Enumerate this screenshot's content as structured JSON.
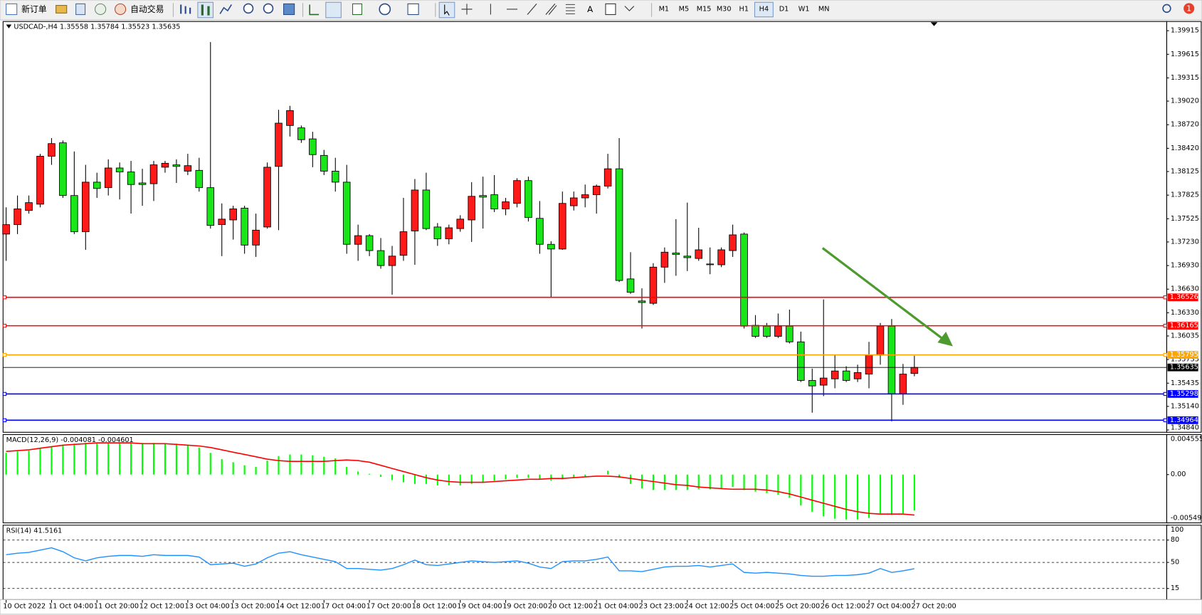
{
  "toolbar": {
    "new_order": "新订单",
    "auto_trading": "自动交易",
    "timeframes": [
      "M1",
      "M5",
      "M15",
      "M30",
      "H1",
      "H4",
      "D1",
      "W1",
      "MN"
    ],
    "active_timeframe": "H4",
    "notifications": 1
  },
  "chart_data": [
    {
      "type": "candlestick",
      "symbol": "USDCAD-,H4",
      "categories": [
        "10 Oct 2022",
        null,
        null,
        null,
        "11 Oct 04:00",
        null,
        null,
        null,
        "11 Oct 20:00",
        null,
        null,
        null,
        "12 Oct 12:00",
        null,
        null,
        null,
        "13 Oct 04:00",
        null,
        null,
        null,
        "13 Oct 20:00",
        null,
        null,
        null,
        "14 Oct 12:00",
        null,
        null,
        null,
        "17 Oct 04:00",
        null,
        null,
        null,
        "17 Oct 20:00",
        null,
        null,
        null,
        "18 Oct 12:00",
        null,
        null,
        null,
        "19 Oct 04:00",
        null,
        null,
        null,
        "19 Oct 20:00",
        null,
        null,
        null,
        "20 Oct 12:00",
        null,
        null,
        null,
        "21 Oct 04:00",
        null,
        null,
        null,
        "23 Oct 23:00",
        null,
        null,
        null,
        "24 Oct 12:00",
        null,
        null,
        null,
        "25 Oct 04:00",
        null,
        null,
        null,
        "25 Oct 20:00",
        null,
        null,
        null,
        "26 Oct 12:00",
        null,
        null,
        null,
        "27 Oct 04:00",
        null,
        null,
        null,
        "27 Oct 20:00"
      ],
      "open": [
        1.3733,
        1.3745,
        1.3763,
        1.3771,
        1.3832,
        1.3849,
        1.3782,
        1.3736,
        1.3799,
        1.3792,
        1.3817,
        1.3812,
        1.3798,
        1.3797,
        1.3818,
        1.3821,
        1.3813,
        1.3814,
        1.3792,
        1.3745,
        1.3751,
        1.3766,
        1.3719,
        1.3742,
        1.3819,
        1.3871,
        1.3868,
        1.3854,
        1.3833,
        1.3813,
        1.3799,
        1.372,
        1.3731,
        1.3712,
        1.3693,
        1.3706,
        1.3737,
        1.3789,
        1.3742,
        1.3727,
        1.374,
        1.3751,
        1.3782,
        1.3783,
        1.3765,
        1.3772,
        1.3801,
        1.3753,
        1.372,
        1.3714,
        1.3769,
        1.3779,
        1.3783,
        1.3794,
        1.3816,
        1.3676,
        1.3648,
        1.3645,
        1.3691,
        1.3709,
        1.3705,
        1.3702,
        1.3695,
        1.3694,
        1.3712,
        1.3733,
        1.3617,
        1.3616,
        1.3603,
        1.3616,
        1.3596,
        1.3547,
        1.3541,
        1.3549,
        1.3559,
        1.3549,
        1.3555,
        1.3579,
        1.3616,
        1.353,
        1.35558
      ],
      "high": [
        1.3767,
        1.3782,
        1.3782,
        1.3835,
        1.3855,
        1.3852,
        1.3838,
        1.3821,
        1.3811,
        1.3828,
        1.3824,
        1.3826,
        1.3816,
        1.3826,
        1.3826,
        1.3828,
        1.3835,
        1.383,
        1.3977,
        1.3772,
        1.3769,
        1.3769,
        1.3759,
        1.3824,
        1.3891,
        1.3896,
        1.3871,
        1.3863,
        1.384,
        1.383,
        1.3821,
        1.3745,
        1.3733,
        1.3728,
        1.3718,
        1.3779,
        1.3803,
        1.3811,
        1.3747,
        1.3745,
        1.3757,
        1.3799,
        1.3806,
        1.3808,
        1.3779,
        1.3804,
        1.3806,
        1.3775,
        1.3724,
        1.3787,
        1.3787,
        1.3796,
        1.3796,
        1.3835,
        1.3855,
        1.371,
        1.3664,
        1.3696,
        1.3716,
        1.3752,
        1.3773,
        1.3741,
        1.3716,
        1.3716,
        1.3745,
        1.3735,
        1.363,
        1.362,
        1.3632,
        1.3637,
        1.3609,
        1.3562,
        1.365,
        1.3579,
        1.3565,
        1.3567,
        1.3596,
        1.362,
        1.3625,
        1.3568,
        1.35784
      ],
      "low": [
        1.3699,
        1.3733,
        1.3759,
        1.3767,
        1.3821,
        1.3779,
        1.3733,
        1.3713,
        1.3779,
        1.3782,
        1.3777,
        1.3759,
        1.3769,
        1.3775,
        1.3811,
        1.3798,
        1.3808,
        1.3787,
        1.374,
        1.3705,
        1.3726,
        1.3708,
        1.3704,
        1.374,
        1.3738,
        1.3857,
        1.3849,
        1.3818,
        1.3808,
        1.3787,
        1.3708,
        1.3699,
        1.3705,
        1.3689,
        1.3656,
        1.3699,
        1.3694,
        1.3738,
        1.3718,
        1.372,
        1.3736,
        1.3723,
        1.374,
        1.3761,
        1.3757,
        1.3767,
        1.3749,
        1.3708,
        1.3652,
        1.3713,
        1.3763,
        1.3767,
        1.3759,
        1.3791,
        1.3672,
        1.3657,
        1.3613,
        1.3643,
        1.3671,
        1.368,
        1.3686,
        1.3699,
        1.3682,
        1.3691,
        1.3704,
        1.3613,
        1.3601,
        1.3601,
        1.3601,
        1.3594,
        1.3545,
        1.3506,
        1.3527,
        1.3537,
        1.3545,
        1.3545,
        1.3537,
        1.3567,
        1.3495,
        1.3516,
        1.35523
      ],
      "close": [
        1.3745,
        1.3765,
        1.3773,
        1.3832,
        1.3848,
        1.3782,
        1.3736,
        1.3799,
        1.3791,
        1.3817,
        1.3812,
        1.3796,
        1.3796,
        1.3821,
        1.3823,
        1.3819,
        1.382,
        1.3792,
        1.3744,
        1.3752,
        1.3765,
        1.3719,
        1.3738,
        1.3818,
        1.3874,
        1.389,
        1.3853,
        1.3834,
        1.3813,
        1.3799,
        1.372,
        1.3731,
        1.3712,
        1.3693,
        1.3705,
        1.3736,
        1.3789,
        1.374,
        1.3727,
        1.3741,
        1.3752,
        1.3781,
        1.378,
        1.3765,
        1.3774,
        1.3801,
        1.3754,
        1.372,
        1.3714,
        1.3772,
        1.3779,
        1.3783,
        1.3794,
        1.3816,
        1.3674,
        1.3659,
        1.3646,
        1.3691,
        1.371,
        1.3707,
        1.3703,
        1.3713,
        1.3694,
        1.3713,
        1.3732,
        1.3616,
        1.3603,
        1.3603,
        1.3616,
        1.3596,
        1.3547,
        1.354,
        1.355,
        1.3559,
        1.3547,
        1.3557,
        1.3579,
        1.3616,
        1.353,
        1.3555,
        1.35635
      ],
      "up_color": "#ff1a1a",
      "down_color": "#19e619",
      "ylim": [
        1.34811,
        1.40032
      ],
      "yticks": [
        1.39915,
        1.39615,
        1.39315,
        {
          "value": 1.3902,
          "label": "1.39020"
        },
        {
          "value": 1.3872,
          "label": "1.38720"
        },
        {
          "value": 1.3842,
          "label": "1.38420"
        },
        1.38125,
        1.37825,
        1.37525,
        {
          "value": 1.3723,
          "label": "1.37230"
        },
        {
          "value": 1.3693,
          "label": "1.36930"
        },
        {
          "value": 1.3663,
          "label": "1.36630"
        },
        {
          "value": 1.3633,
          "label": "1.36330"
        },
        1.36035,
        1.35735,
        1.35435,
        {
          "value": 1.3514,
          "label": "1.35140"
        },
        {
          "value": 1.3484,
          "label": "1.34840"
        }
      ],
      "grid": false,
      "levels": [
        {
          "value": 1.36526,
          "color": "#ff0000"
        },
        {
          "value": 1.36165,
          "color": "#ff0000"
        },
        {
          "value": 1.35795,
          "color": "#ffa500"
        },
        {
          "value": 1.35298,
          "color": "#0000ff"
        },
        {
          "value": 1.34964,
          "color": "#0000ff"
        }
      ]
    },
    {
      "type": "macd",
      "title": "MACD(12,26,9)",
      "series": [
        {
          "color": "#00ff00",
          "values": [
            0.00247,
            0.00264,
            0.00273,
            0.003,
            0.00317,
            0.00335,
            0.00352,
            0.00361,
            0.00361,
            0.00361,
            0.00361,
            0.00361,
            0.00361,
            0.00361,
            0.00352,
            0.00352,
            0.00335,
            0.00308,
            0.00247,
            0.00176,
            0.00141,
            0.00106,
            0.00088,
            0.00159,
            0.00211,
            0.00229,
            0.00229,
            0.0022,
            0.00203,
            0.00185,
            0.00088,
            0.00035,
            9e-05,
            -0.00026,
            -0.00062,
            -0.00088,
            -0.00106,
            -0.00106,
            -0.00123,
            -0.00123,
            -0.00123,
            -0.00106,
            -0.00088,
            -0.0007,
            -0.00053,
            -0.00035,
            -0.00035,
            -0.00053,
            -0.0007,
            -0.00053,
            -0.00035,
            -0.00018,
            0,
            0.00044,
            -0.00035,
            -0.00106,
            -0.00159,
            -0.00176,
            -0.00176,
            -0.00176,
            -0.00176,
            -0.00167,
            -0.00167,
            -0.00159,
            -0.00141,
            -0.00176,
            -0.00194,
            -0.00211,
            -0.00229,
            -0.00264,
            -0.00352,
            -0.00423,
            -0.00476,
            -0.00502,
            -0.00511,
            -0.00511,
            -0.00493,
            -0.00441,
            -0.00458,
            -0.00441,
            -0.004081
          ]
        },
        {
          "color": "#ff0000",
          "values": [
            0.00264,
            0.00273,
            0.00282,
            0.003,
            0.00317,
            0.00335,
            0.00344,
            0.00352,
            0.00361,
            0.00361,
            0.00361,
            0.00361,
            0.00352,
            0.00352,
            0.00352,
            0.00344,
            0.00335,
            0.00326,
            0.00308,
            0.00282,
            0.00255,
            0.00229,
            0.00203,
            0.00176,
            0.00159,
            0.0015,
            0.0015,
            0.0015,
            0.0015,
            0.00159,
            0.00167,
            0.00159,
            0.00141,
            0.00106,
            0.0007,
            0.00035,
            0,
            -0.00035,
            -0.00062,
            -0.00079,
            -0.00088,
            -0.00088,
            -0.00088,
            -0.00079,
            -0.0007,
            -0.00062,
            -0.00053,
            -0.00053,
            -0.00044,
            -0.00044,
            -0.00035,
            -0.00026,
            -0.00018,
            -0.00018,
            -0.00026,
            -0.00044,
            -0.00062,
            -0.00079,
            -0.00097,
            -0.00115,
            -0.00123,
            -0.00141,
            -0.0015,
            -0.00159,
            -0.00167,
            -0.00167,
            -0.00167,
            -0.00176,
            -0.00194,
            -0.0022,
            -0.00255,
            -0.00291,
            -0.00326,
            -0.00361,
            -0.00396,
            -0.00423,
            -0.00441,
            -0.00449,
            -0.00449,
            -0.00449,
            -0.004601
          ]
        }
      ],
      "ylim": [
        -0.005493,
        0.004555
      ],
      "yticks": [
        0.004555,
        {
          "value": 0,
          "label": "0.00"
        },
        -0.005493
      ]
    },
    {
      "type": "line",
      "title": "RSI(14)",
      "color": "#1e90ff",
      "values": [
        60.3,
        62.4,
        63.4,
        66.5,
        69.6,
        64.4,
        56.2,
        52.1,
        56.2,
        58.2,
        59.3,
        59.3,
        58.2,
        60.3,
        59.3,
        59.3,
        59.3,
        57.2,
        46.9,
        47.9,
        49.0,
        44.8,
        47.9,
        56.2,
        62.4,
        64.4,
        60.3,
        57.2,
        54.1,
        51.0,
        41.8,
        41.8,
        40.7,
        39.7,
        41.8,
        46.9,
        53.1,
        46.9,
        45.9,
        47.9,
        50.0,
        52.1,
        51.0,
        50.0,
        51.0,
        52.1,
        49.0,
        43.8,
        41.8,
        51.0,
        52.1,
        52.1,
        54.1,
        57.2,
        38.7,
        38.7,
        37.6,
        40.7,
        43.8,
        44.8,
        44.8,
        45.9,
        43.8,
        45.9,
        47.9,
        36.6,
        35.6,
        36.6,
        35.6,
        34.5,
        32.5,
        31.4,
        31.4,
        32.5,
        32.5,
        33.5,
        35.6,
        41.8,
        36.6,
        38.7,
        41.5161
      ],
      "ylim": [
        0,
        100
      ],
      "yticks": [
        100,
        80,
        50,
        15
      ],
      "levels": [
        80,
        50,
        15
      ]
    }
  ]
}
